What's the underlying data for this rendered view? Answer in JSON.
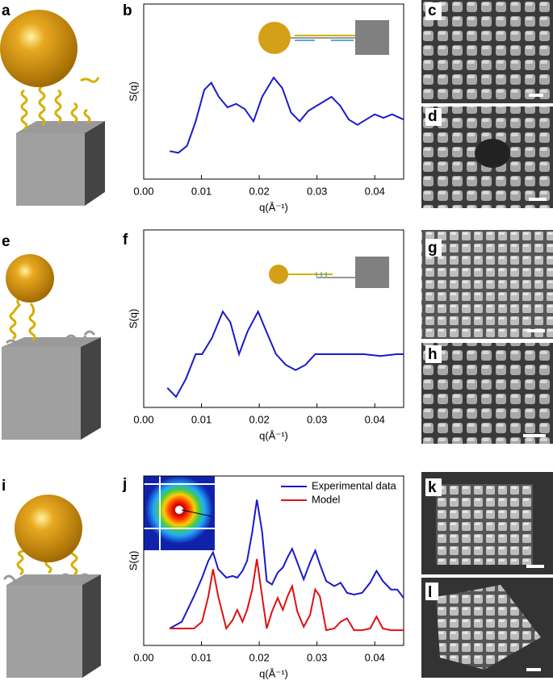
{
  "panel_labels": [
    "a",
    "b",
    "c",
    "d",
    "e",
    "f",
    "g",
    "h",
    "i",
    "j",
    "k",
    "l"
  ],
  "chart_data": [
    {
      "type": "line",
      "xlabel": "q(Å⁻¹)",
      "ylabel": "S(q)",
      "color": "#1a1acc",
      "x": [
        0.0045,
        0.006,
        0.0075,
        0.009,
        0.0105,
        0.0117,
        0.013,
        0.0145,
        0.016,
        0.0175,
        0.019,
        0.0205,
        0.0225,
        0.024,
        0.0255,
        0.027,
        0.0285,
        0.03,
        0.0325,
        0.034,
        0.0355,
        0.037,
        0.0385,
        0.04,
        0.0415,
        0.043,
        0.045
      ],
      "values": [
        0.16,
        0.15,
        0.19,
        0.33,
        0.51,
        0.55,
        0.47,
        0.41,
        0.43,
        0.4,
        0.33,
        0.47,
        0.58,
        0.52,
        0.38,
        0.33,
        0.39,
        0.42,
        0.47,
        0.42,
        0.34,
        0.31,
        0.34,
        0.37,
        0.35,
        0.37,
        0.34
      ],
      "xlim": [
        0,
        0.045
      ],
      "ylim": [
        0,
        1
      ],
      "xticks": [
        {
          "value": 0,
          "label": "0.00"
        },
        0.01,
        0.02,
        0.03,
        0.04
      ]
    },
    {
      "type": "line",
      "xlabel": "q(Å⁻¹)",
      "ylabel": "S(q)",
      "color": "#1a1acc",
      "x": [
        0.0041,
        0.0056,
        0.0073,
        0.009,
        0.0101,
        0.0118,
        0.0137,
        0.015,
        0.0165,
        0.018,
        0.0198,
        0.0212,
        0.0229,
        0.0246,
        0.0263,
        0.028,
        0.0297,
        0.0325,
        0.0353,
        0.0381,
        0.041,
        0.0438,
        0.045
      ],
      "values": [
        0.11,
        0.06,
        0.16,
        0.3,
        0.3,
        0.39,
        0.54,
        0.48,
        0.3,
        0.43,
        0.54,
        0.43,
        0.3,
        0.24,
        0.21,
        0.24,
        0.3,
        0.3,
        0.3,
        0.3,
        0.29,
        0.3,
        0.3
      ],
      "xlim": [
        0,
        0.045
      ],
      "ylim": [
        0,
        1
      ],
      "xticks": [
        {
          "value": 0,
          "label": "0.00"
        },
        0.01,
        0.02,
        0.03,
        0.04
      ]
    },
    {
      "type": "line",
      "xlabel": "q(Å⁻¹)",
      "ylabel": "S(q)",
      "x": [
        0.0045,
        0.0066,
        0.0087,
        0.0101,
        0.0112,
        0.012,
        0.0129,
        0.0143,
        0.0154,
        0.0162,
        0.0171,
        0.0179,
        0.0188,
        0.0196,
        0.0205,
        0.0213,
        0.0222,
        0.0232,
        0.0241,
        0.0249,
        0.0257,
        0.0266,
        0.0277,
        0.0288,
        0.0297,
        0.0305,
        0.0316,
        0.033,
        0.0341,
        0.0352,
        0.0364,
        0.0378,
        0.0392,
        0.0403,
        0.0414,
        0.0428,
        0.0439,
        0.045
      ],
      "series": [
        {
          "name": "Experimental data",
          "color": "#1a1acc",
          "values": [
            0.1,
            0.14,
            0.29,
            0.4,
            0.5,
            0.55,
            0.45,
            0.4,
            0.41,
            0.4,
            0.44,
            0.5,
            0.67,
            0.86,
            0.67,
            0.38,
            0.36,
            0.43,
            0.46,
            0.52,
            0.57,
            0.49,
            0.39,
            0.49,
            0.56,
            0.48,
            0.38,
            0.35,
            0.37,
            0.31,
            0.3,
            0.31,
            0.37,
            0.44,
            0.38,
            0.33,
            0.33,
            0.28
          ]
        },
        {
          "name": "Model",
          "color": "#e01010",
          "values": [
            0.1,
            0.1,
            0.1,
            0.14,
            0.29,
            0.45,
            0.29,
            0.1,
            0.15,
            0.21,
            0.14,
            0.21,
            0.33,
            0.51,
            0.29,
            0.1,
            0.2,
            0.28,
            0.21,
            0.29,
            0.35,
            0.2,
            0.11,
            0.18,
            0.33,
            0.29,
            0.09,
            0.1,
            0.14,
            0.16,
            0.09,
            0.09,
            0.1,
            0.17,
            0.1,
            0.09,
            0.09,
            0.09
          ]
        }
      ],
      "xlim": [
        0,
        0.045
      ],
      "ylim": [
        0,
        1
      ],
      "xticks": [
        {
          "value": 0,
          "label": "0.00"
        },
        0.01,
        0.02,
        0.03,
        0.04
      ]
    }
  ]
}
